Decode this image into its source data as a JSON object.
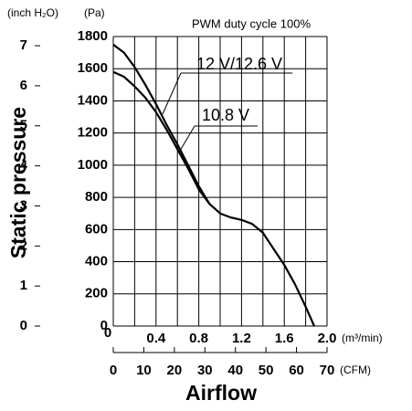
{
  "chart_data": {
    "type": "line",
    "annotation": "PWM duty cycle 100%",
    "y_label": "Static pressure",
    "y_unit": "(Pa)",
    "y2_unit": "(inch H₂O)",
    "x_label": "Airflow",
    "x_unit": "(m³/min)",
    "x2_unit": "(CFM)",
    "xlim": [
      0,
      2
    ],
    "xticks": [
      {
        "value": 0,
        "label": "0"
      },
      0.4,
      0.8,
      1.2,
      1.6,
      {
        "value": 2,
        "label": "2.0"
      }
    ],
    "xgrid": [
      0.2,
      0.6,
      1.0,
      1.4,
      1.8
    ],
    "x2lim": [
      0,
      70
    ],
    "x2ticks": [
      0,
      10,
      20,
      30,
      40,
      50,
      60,
      70
    ],
    "ylim": [
      0,
      1800
    ],
    "yticks": [
      0,
      200,
      400,
      600,
      800,
      1000,
      1200,
      1400,
      1600,
      1800
    ],
    "y2lim": [
      0,
      7.23
    ],
    "y2ticks": [
      0,
      1,
      2,
      3,
      4,
      5,
      6,
      7
    ],
    "grid": true,
    "series": [
      {
        "name": "12 V/12.6 V",
        "color": "#000000",
        "x": [
          0,
          0.1,
          0.2,
          0.3,
          0.4,
          0.5,
          0.6,
          0.7,
          0.8,
          0.9,
          1.0,
          1.1,
          1.2,
          1.3,
          1.4,
          1.5,
          1.6,
          1.7,
          1.8,
          1.88
        ],
        "values": [
          1750,
          1700,
          1610,
          1500,
          1380,
          1250,
          1130,
          1000,
          870,
          760,
          700,
          675,
          660,
          635,
          580,
          480,
          380,
          260,
          120,
          0
        ]
      },
      {
        "name": "10.8 V",
        "color": "#000000",
        "x": [
          0,
          0.1,
          0.2,
          0.3,
          0.4,
          0.5,
          0.6,
          0.7,
          0.8,
          0.9
        ],
        "values": [
          1580,
          1550,
          1490,
          1420,
          1330,
          1220,
          1100,
          980,
          850,
          760
        ]
      }
    ]
  }
}
